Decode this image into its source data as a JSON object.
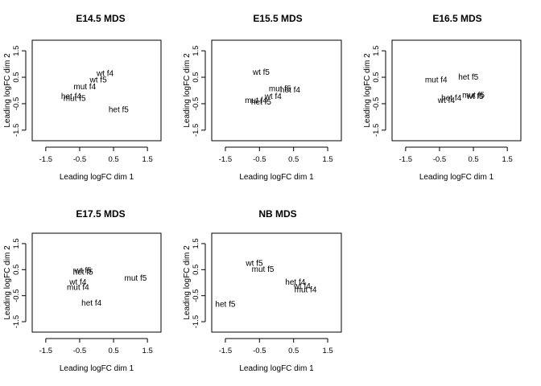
{
  "figure_title": "",
  "chart_data": [
    {
      "type": "scatter",
      "title": "E14.5 MDS",
      "xlabel": "Leading logFC dim 1",
      "ylabel": "Leading logFC dim 2",
      "xlim": [
        -1.9,
        1.9
      ],
      "ylim": [
        -1.9,
        1.9
      ],
      "xticks": [
        "-1.5",
        "-0.5",
        "0.5",
        "1.5"
      ],
      "yticks": [
        "-1.5",
        "-0.5",
        "0.5",
        "1.5"
      ],
      "points": [
        {
          "label": "wt f4",
          "x": 0.25,
          "y": 0.62
        },
        {
          "label": "wt f5",
          "x": 0.05,
          "y": 0.38
        },
        {
          "label": "mut f4",
          "x": -0.35,
          "y": 0.12
        },
        {
          "label": "het f4",
          "x": -0.75,
          "y": -0.25
        },
        {
          "label": "mut f5",
          "x": -0.65,
          "y": -0.32
        },
        {
          "label": "het f5",
          "x": 0.65,
          "y": -0.75
        }
      ]
    },
    {
      "type": "scatter",
      "title": "E15.5 MDS",
      "xlabel": "Leading logFC dim 1",
      "ylabel": "Leading logFC dim 2",
      "xlim": [
        -1.9,
        1.9
      ],
      "ylim": [
        -1.9,
        1.9
      ],
      "xticks": [
        "-1.5",
        "-0.5",
        "0.5",
        "1.5"
      ],
      "yticks": [
        "-1.5",
        "-0.5",
        "0.5",
        "1.5"
      ],
      "points": [
        {
          "label": "wt f5",
          "x": -0.45,
          "y": 0.67
        },
        {
          "label": "mut f5",
          "x": 0.1,
          "y": 0.05
        },
        {
          "label": "het f4",
          "x": 0.4,
          "y": 0.0
        },
        {
          "label": "wt f4",
          "x": -0.1,
          "y": -0.25
        },
        {
          "label": "mut f4",
          "x": -0.6,
          "y": -0.4
        },
        {
          "label": "het f5",
          "x": -0.45,
          "y": -0.45
        }
      ]
    },
    {
      "type": "scatter",
      "title": "E16.5 MDS",
      "xlabel": "Leading logFC dim 1",
      "ylabel": "Leading logFC dim 2",
      "xlim": [
        -1.9,
        1.9
      ],
      "ylim": [
        -1.9,
        1.9
      ],
      "xticks": [
        "-1.5",
        "-0.5",
        "0.5",
        "1.5"
      ],
      "yticks": [
        "-1.5",
        "-0.5",
        "0.5",
        "1.5"
      ],
      "points": [
        {
          "label": "het f5",
          "x": 0.35,
          "y": 0.48
        },
        {
          "label": "mut f4",
          "x": -0.6,
          "y": 0.38
        },
        {
          "label": "mut f5",
          "x": 0.5,
          "y": -0.2
        },
        {
          "label": "wt f5",
          "x": 0.55,
          "y": -0.25
        },
        {
          "label": "het f4",
          "x": -0.15,
          "y": -0.3
        },
        {
          "label": "wt f4",
          "x": -0.3,
          "y": -0.4
        }
      ]
    },
    {
      "type": "scatter",
      "title": "E17.5 MDS",
      "xlabel": "Leading logFC dim 1",
      "ylabel": "Leading logFC dim 2",
      "xlim": [
        -1.9,
        1.9
      ],
      "ylim": [
        -1.9,
        1.9
      ],
      "xticks": [
        "-1.5",
        "-0.5",
        "0.5",
        "1.5"
      ],
      "yticks": [
        "-1.5",
        "-0.5",
        "0.5",
        "1.5"
      ],
      "points": [
        {
          "label": "wt f5",
          "x": -0.4,
          "y": 0.45
        },
        {
          "label": "het f5",
          "x": -0.4,
          "y": 0.38
        },
        {
          "label": "mut f5",
          "x": 1.15,
          "y": 0.15
        },
        {
          "label": "wt f4",
          "x": -0.55,
          "y": 0.0
        },
        {
          "label": "mut f4",
          "x": -0.55,
          "y": -0.2
        },
        {
          "label": "het f4",
          "x": -0.15,
          "y": -0.8
        }
      ]
    },
    {
      "type": "scatter",
      "title": "NB MDS",
      "xlabel": "Leading logFC dim 1",
      "ylabel": "Leading logFC dim 2",
      "xlim": [
        -1.9,
        1.9
      ],
      "ylim": [
        -1.9,
        1.9
      ],
      "xticks": [
        "-1.5",
        "-0.5",
        "0.5",
        "1.5"
      ],
      "yticks": [
        "-1.5",
        "-0.5",
        "0.5",
        "1.5"
      ],
      "points": [
        {
          "label": "wt f5",
          "x": -0.65,
          "y": 0.72
        },
        {
          "label": "mut f5",
          "x": -0.4,
          "y": 0.5
        },
        {
          "label": "het f4",
          "x": 0.55,
          "y": 0.0
        },
        {
          "label": "wt f4",
          "x": 0.75,
          "y": -0.15
        },
        {
          "label": "mut f4",
          "x": 0.85,
          "y": -0.3
        },
        {
          "label": "het f5",
          "x": -1.5,
          "y": -0.85
        }
      ]
    }
  ]
}
